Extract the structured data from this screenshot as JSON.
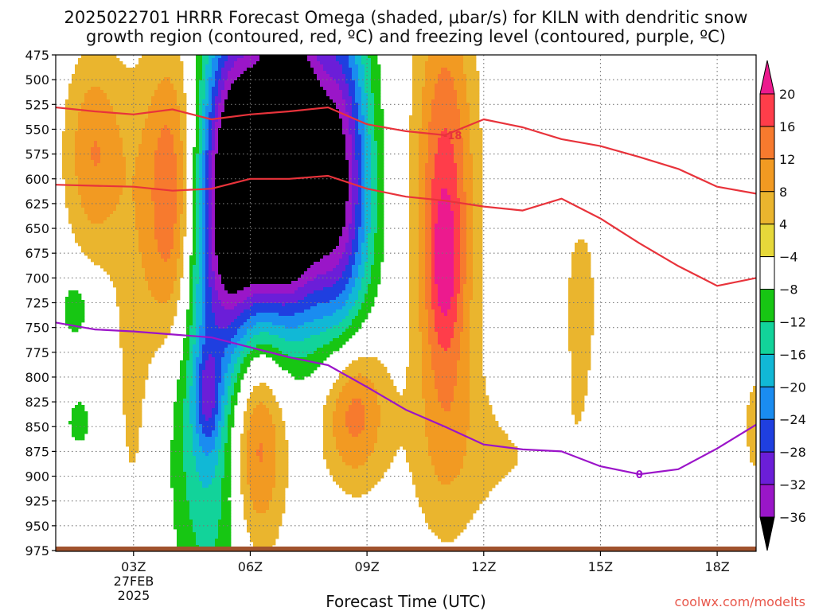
{
  "chart_data": {
    "type": "contour",
    "title_line1": "2025022701 HRRR Forecast Omega (shaded, μbar/s) for KILN with dendritic snow",
    "title_line2": "growth region (contoured, red, ºC) and freezing level (contoured, purple, ºC)",
    "xlabel": "Forecast Time (UTC)",
    "credit": "coolwx.com/modelts",
    "x_range_hours": [
      1,
      19
    ],
    "y_pressure_range_hPa": [
      475,
      975
    ],
    "y_ticks": [
      "475",
      "500",
      "525",
      "550",
      "575",
      "600",
      "625",
      "650",
      "675",
      "700",
      "725",
      "750",
      "775",
      "800",
      "825",
      "850",
      "875",
      "900",
      "925",
      "950",
      "975"
    ],
    "x_ticks": [
      {
        "label": "03Z",
        "hour": 3
      },
      {
        "label": "06Z",
        "hour": 6
      },
      {
        "label": "09Z",
        "hour": 9
      },
      {
        "label": "12Z",
        "hour": 12
      },
      {
        "label": "15Z",
        "hour": 15
      },
      {
        "label": "18Z",
        "hour": 18
      }
    ],
    "date_label": [
      "27FEB",
      "2025"
    ],
    "grid": true,
    "colorbar": {
      "label_values": [
        "20",
        "16",
        "12",
        "8",
        "4",
        "−4",
        "−8",
        "−12",
        "−16",
        "−20",
        "−24",
        "−28",
        "−32",
        "−36"
      ],
      "band_colors": [
        "#ff3d4a",
        "#f77a2e",
        "#f29a22",
        "#eab52e",
        "#e6d83a",
        "#ffffff",
        "#17c613",
        "#12d39a",
        "#11b8d6",
        "#1a8cf0",
        "#1f3fe0",
        "#6b1ed8",
        "#9a16c8",
        "#9c9c9c"
      ],
      "levels": [
        20,
        16,
        12,
        8,
        4,
        -4,
        -8,
        -12,
        -16,
        -20,
        -24,
        -28,
        -32,
        -36
      ]
    },
    "contour_labels": [
      {
        "text": "-18",
        "color": "#e8333b"
      },
      {
        "text": "0",
        "color": "#9b14c9"
      }
    ],
    "dgz_upper_line": {
      "name": "-18 ºC",
      "color": "#e8333b",
      "hours": [
        1,
        2,
        3,
        4,
        5,
        6,
        7,
        8,
        9,
        10,
        11,
        12,
        13,
        14,
        15,
        16,
        17,
        18,
        19
      ],
      "pressure": [
        528,
        532,
        535,
        530,
        540,
        535,
        532,
        528,
        545,
        552,
        556,
        540,
        548,
        560,
        567,
        578,
        590,
        608,
        615
      ]
    },
    "dgz_lower_line": {
      "name": "-12 ºC",
      "color": "#e8333b",
      "hours": [
        1,
        2,
        3,
        4,
        5,
        6,
        7,
        8,
        9,
        10,
        11,
        12,
        13,
        14,
        15,
        16,
        17,
        18,
        19
      ],
      "pressure": [
        606,
        607,
        608,
        612,
        610,
        600,
        600,
        597,
        610,
        618,
        622,
        628,
        632,
        620,
        640,
        665,
        688,
        708,
        700
      ]
    },
    "freezing_line": {
      "name": "0 ºC",
      "color": "#9b14c9",
      "hours": [
        1,
        2,
        3,
        4,
        5,
        6,
        7,
        8,
        9,
        10,
        11,
        12,
        13,
        14,
        15,
        16,
        17,
        18,
        19
      ],
      "pressure": [
        745,
        752,
        754,
        757,
        760,
        770,
        780,
        788,
        810,
        833,
        850,
        868,
        873,
        875,
        890,
        898,
        893,
        872,
        848
      ]
    },
    "omega_features": [
      {
        "hour": 2.0,
        "pressure": 575,
        "sx": 0.55,
        "sp": 75,
        "omega": 12
      },
      {
        "hour": 3.0,
        "pressure": 780,
        "sx": 0.42,
        "sp": 180,
        "omega": 5
      },
      {
        "hour": 4.0,
        "pressure": 595,
        "sx": 0.55,
        "sp": 95,
        "omega": 16
      },
      {
        "hour": 4.0,
        "pressure": 700,
        "sx": 0.4,
        "sp": 70,
        "omega": 6
      },
      {
        "hour": 1.5,
        "pressure": 730,
        "sx": 0.3,
        "sp": 25,
        "omega": -7
      },
      {
        "hour": 1.6,
        "pressure": 845,
        "sx": 0.22,
        "sp": 18,
        "omega": -7
      },
      {
        "hour": 5.0,
        "pressure": 840,
        "sx": 0.7,
        "sp": 140,
        "omega": -14
      },
      {
        "hour": 4.9,
        "pressure": 820,
        "sx": 0.22,
        "sp": 35,
        "omega": -12
      },
      {
        "hour": 5.5,
        "pressure": 590,
        "sx": 0.55,
        "sp": 140,
        "omega": -16
      },
      {
        "hour": 6.2,
        "pressure": 590,
        "sx": 0.95,
        "sp": 110,
        "omega": -26
      },
      {
        "hour": 7.0,
        "pressure": 540,
        "sx": 0.55,
        "sp": 110,
        "omega": -30
      },
      {
        "hour": 8.3,
        "pressure": 580,
        "sx": 0.55,
        "sp": 130,
        "omega": -26
      },
      {
        "hour": 6.8,
        "pressure": 640,
        "sx": 1.3,
        "sp": 80,
        "omega": -16
      },
      {
        "hour": 6.1,
        "pressure": 855,
        "sx": 0.55,
        "sp": 85,
        "omega": 18
      },
      {
        "hour": 8.6,
        "pressure": 830,
        "sx": 0.6,
        "sp": 55,
        "omega": 16
      },
      {
        "hour": 11.0,
        "pressure": 650,
        "sx": 0.5,
        "sp": 150,
        "omega": 14
      },
      {
        "hour": 11.0,
        "pressure": 690,
        "sx": 0.25,
        "sp": 50,
        "omega": 6
      },
      {
        "hour": 11.0,
        "pressure": 620,
        "sx": 0.7,
        "sp": 220,
        "omega": 5
      },
      {
        "hour": 14.5,
        "pressure": 720,
        "sx": 0.45,
        "sp": 90,
        "omega": 5
      },
      {
        "hour": 12.5,
        "pressure": 880,
        "sx": 2.0,
        "sp": 60,
        "omega": 4
      },
      {
        "hour": 19.0,
        "pressure": 850,
        "sx": 0.35,
        "sp": 60,
        "omega": 5
      }
    ]
  }
}
